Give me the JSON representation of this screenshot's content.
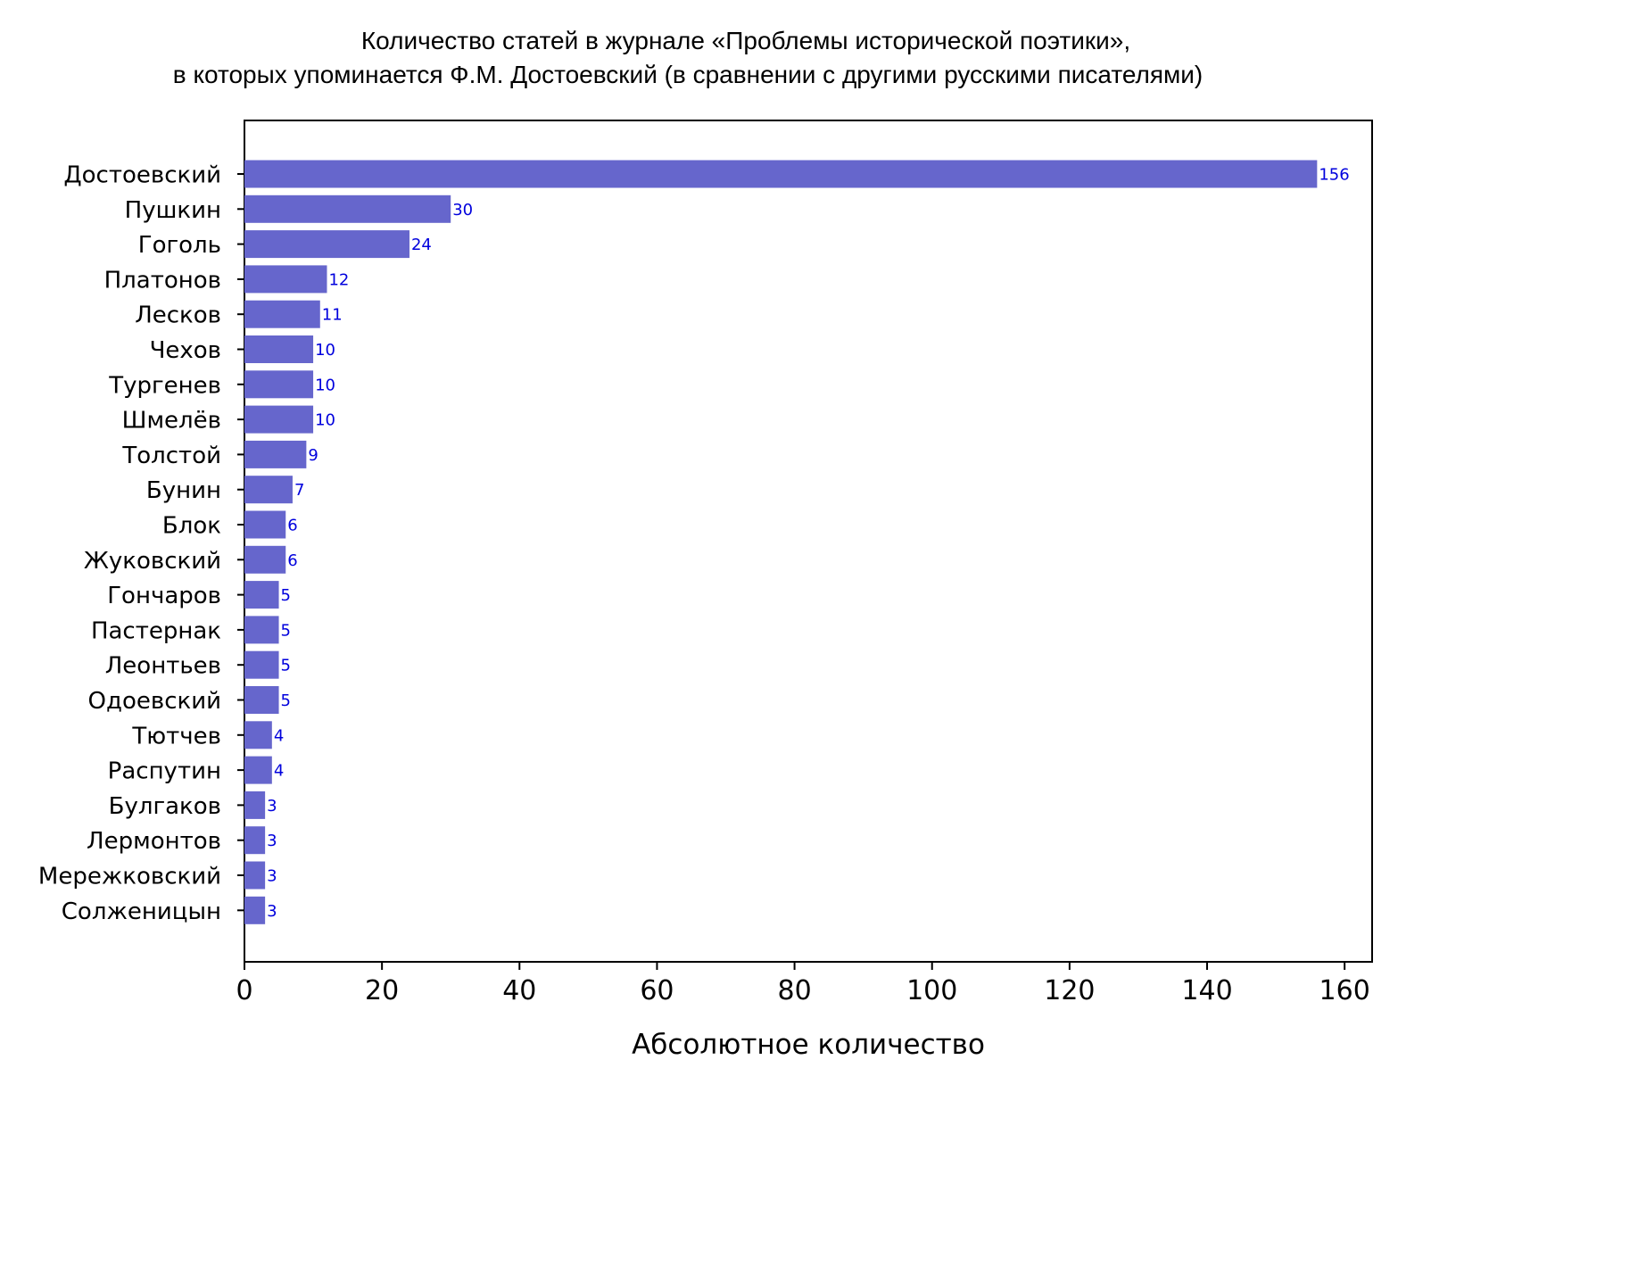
{
  "chart_data": {
    "type": "bar",
    "orientation": "horizontal",
    "title_lines": [
      "Количество статей в журнале «Проблемы исторической поэтики»,",
      "в которых упоминается Ф.М. Достоевский (в сравнении с другими русскими писателями)"
    ],
    "xlabel": "Абсолютное количество",
    "ylabel": "",
    "xlim": [
      0,
      164
    ],
    "xticks": [
      0,
      20,
      40,
      60,
      80,
      100,
      120,
      140,
      160
    ],
    "grid": false,
    "categories": [
      "Достоевский",
      "Пушкин",
      "Гоголь",
      "Платонов",
      "Лесков",
      "Чехов",
      "Тургенев",
      "Шмелёв",
      "Толстой",
      "Бунин",
      "Блок",
      "Жуковский",
      "Гончаров",
      "Пастернак",
      "Леонтьев",
      "Одоевский",
      "Тютчев",
      "Распутин",
      "Булгаков",
      "Лермонтов",
      "Мережковский",
      "Солженицын"
    ],
    "values": [
      156,
      30,
      24,
      12,
      11,
      10,
      10,
      10,
      9,
      7,
      6,
      6,
      5,
      5,
      5,
      5,
      4,
      4,
      3,
      3,
      3,
      3
    ],
    "bar_color": "#6666cc",
    "value_label_color": "#0000dd"
  }
}
